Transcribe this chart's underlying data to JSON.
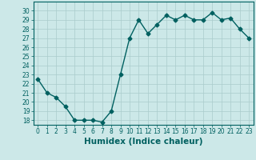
{
  "x": [
    0,
    1,
    2,
    3,
    4,
    5,
    6,
    7,
    8,
    9,
    10,
    11,
    12,
    13,
    14,
    15,
    16,
    17,
    18,
    19,
    20,
    21,
    22,
    23
  ],
  "y": [
    22.5,
    21.0,
    20.5,
    19.5,
    18.0,
    18.0,
    18.0,
    17.8,
    19.0,
    23.0,
    27.0,
    29.0,
    27.5,
    28.5,
    29.5,
    29.0,
    29.5,
    29.0,
    29.0,
    29.8,
    29.0,
    29.2,
    28.0,
    27.0
  ],
  "line_color": "#006060",
  "marker": "D",
  "marker_size": 2.5,
  "bg_color": "#cce8e8",
  "grid_color": "#aacccc",
  "xlabel": "Humidex (Indice chaleur)",
  "ylim": [
    17.5,
    31.0
  ],
  "xlim": [
    -0.5,
    23.5
  ],
  "yticks": [
    18,
    19,
    20,
    21,
    22,
    23,
    24,
    25,
    26,
    27,
    28,
    29,
    30
  ],
  "xticks": [
    0,
    1,
    2,
    3,
    4,
    5,
    6,
    7,
    8,
    9,
    10,
    11,
    12,
    13,
    14,
    15,
    16,
    17,
    18,
    19,
    20,
    21,
    22,
    23
  ],
  "tick_label_fontsize": 5.5,
  "xlabel_fontsize": 7.5,
  "line_width": 1.0
}
